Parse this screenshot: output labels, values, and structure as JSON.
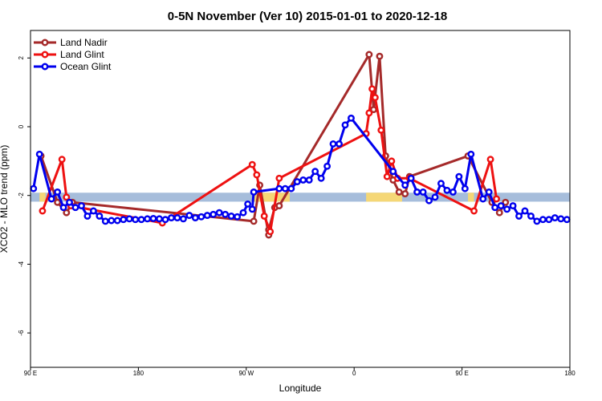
{
  "chart_data": {
    "type": "line",
    "title": "0-5N November (Ver 10)   2015-01-01 to 2020-12-18",
    "xlabel": "Longitude",
    "ylabel": "XCO2 - MLO trend (ppm)",
    "xlim": [
      90,
      450
    ],
    "ylim": [
      -7.0,
      2.8
    ],
    "x_ticks": [
      {
        "value": 90,
        "label": "90 E"
      },
      {
        "value": 162,
        "label": "180"
      },
      {
        "value": 234,
        "label": "90 W"
      },
      {
        "value": 306,
        "label": "0"
      },
      {
        "value": 378,
        "label": "90 E"
      },
      {
        "value": 450,
        "label": "180"
      }
    ],
    "y_ticks": [
      {
        "value": 2,
        "label": "2"
      },
      {
        "value": 0,
        "label": "0"
      },
      {
        "value": -2,
        "label": "-2"
      },
      {
        "value": -4,
        "label": "-4"
      },
      {
        "value": -6,
        "label": "-6"
      }
    ],
    "band": {
      "y_center": -2.05,
      "y_half_height": 0.13,
      "color": "#a6bddb",
      "highlight_color": "#f5d776",
      "highlight_ranges": [
        [
          96,
          100
        ],
        [
          239,
          263
        ],
        [
          314,
          338
        ],
        [
          382,
          386
        ]
      ]
    },
    "legend_position": "top-left",
    "series": [
      {
        "name": "Land Nadir",
        "color": "#a52a2a",
        "points": [
          [
            97,
            -0.85
          ],
          [
            108,
            -2.2
          ],
          [
            114,
            -2.5
          ],
          [
            118,
            -2.2
          ],
          [
            239,
            -2.75
          ],
          [
            243,
            -1.7
          ],
          [
            249,
            -3.15
          ],
          [
            249,
            -3.0
          ],
          [
            253,
            -2.35
          ],
          [
            256,
            -2.3
          ],
          [
            316,
            2.1
          ],
          [
            319,
            0.5
          ],
          [
            323,
            2.05
          ],
          [
            327,
            -0.85
          ],
          [
            332,
            -1.55
          ],
          [
            336,
            -1.9
          ],
          [
            340,
            -1.95
          ],
          [
            343,
            -1.45
          ],
          [
            382,
            -0.85
          ],
          [
            398,
            -2.2
          ],
          [
            403,
            -2.5
          ],
          [
            407,
            -2.2
          ]
        ]
      },
      {
        "name": "Land Glint",
        "color": "#ee1111",
        "points": [
          [
            98,
            -2.45
          ],
          [
            111,
            -0.95
          ],
          [
            114,
            -2.05
          ],
          [
            117,
            -2.3
          ],
          [
            178,
            -2.8
          ],
          [
            238,
            -1.1
          ],
          [
            241,
            -1.4
          ],
          [
            246,
            -2.6
          ],
          [
            250,
            -3.05
          ],
          [
            256,
            -1.5
          ],
          [
            314,
            -0.2
          ],
          [
            316,
            0.4
          ],
          [
            318,
            1.1
          ],
          [
            320,
            0.85
          ],
          [
            324,
            -0.1
          ],
          [
            328,
            -1.45
          ],
          [
            331,
            -1.0
          ],
          [
            335,
            -1.5
          ],
          [
            343,
            -1.5
          ],
          [
            386,
            -2.45
          ],
          [
            397,
            -0.95
          ],
          [
            401,
            -2.1
          ]
        ]
      },
      {
        "name": "Ocean Glint",
        "color": "#0000ee",
        "points": [
          [
            92,
            -1.8
          ],
          [
            96,
            -0.8
          ],
          [
            104,
            -2.1
          ],
          [
            108,
            -1.9
          ],
          [
            112,
            -2.35
          ],
          [
            116,
            -2.2
          ],
          [
            120,
            -2.35
          ],
          [
            124,
            -2.3
          ],
          [
            128,
            -2.6
          ],
          [
            132,
            -2.45
          ],
          [
            136,
            -2.6
          ],
          [
            140,
            -2.75
          ],
          [
            144,
            -2.73
          ],
          [
            148,
            -2.73
          ],
          [
            152,
            -2.7
          ],
          [
            156,
            -2.68
          ],
          [
            160,
            -2.7
          ],
          [
            164,
            -2.7
          ],
          [
            168,
            -2.68
          ],
          [
            172,
            -2.67
          ],
          [
            176,
            -2.68
          ],
          [
            180,
            -2.7
          ],
          [
            184,
            -2.65
          ],
          [
            188,
            -2.65
          ],
          [
            192,
            -2.68
          ],
          [
            196,
            -2.58
          ],
          [
            200,
            -2.65
          ],
          [
            204,
            -2.62
          ],
          [
            208,
            -2.58
          ],
          [
            212,
            -2.55
          ],
          [
            216,
            -2.5
          ],
          [
            220,
            -2.55
          ],
          [
            224,
            -2.6
          ],
          [
            228,
            -2.62
          ],
          [
            232,
            -2.5
          ],
          [
            235,
            -2.25
          ],
          [
            238,
            -2.4
          ],
          [
            239,
            -1.9
          ],
          [
            256,
            -1.8
          ],
          [
            260,
            -1.8
          ],
          [
            264,
            -1.8
          ],
          [
            268,
            -1.6
          ],
          [
            272,
            -1.55
          ],
          [
            276,
            -1.55
          ],
          [
            280,
            -1.3
          ],
          [
            284,
            -1.5
          ],
          [
            288,
            -1.15
          ],
          [
            292,
            -0.5
          ],
          [
            296,
            -0.5
          ],
          [
            300,
            0.05
          ],
          [
            304,
            0.25
          ],
          [
            332,
            -1.3
          ],
          [
            340,
            -1.7
          ],
          [
            344,
            -1.5
          ],
          [
            348,
            -1.9
          ],
          [
            352,
            -1.9
          ],
          [
            356,
            -2.15
          ],
          [
            360,
            -2.05
          ],
          [
            364,
            -1.65
          ],
          [
            368,
            -1.85
          ],
          [
            372,
            -1.9
          ],
          [
            376,
            -1.45
          ],
          [
            380,
            -1.8
          ],
          [
            384,
            -0.8
          ],
          [
            392,
            -2.1
          ],
          [
            396,
            -1.9
          ],
          [
            400,
            -2.35
          ],
          [
            404,
            -2.3
          ],
          [
            408,
            -2.4
          ],
          [
            412,
            -2.3
          ],
          [
            416,
            -2.6
          ],
          [
            420,
            -2.45
          ],
          [
            424,
            -2.6
          ],
          [
            428,
            -2.75
          ],
          [
            432,
            -2.7
          ],
          [
            436,
            -2.7
          ],
          [
            440,
            -2.65
          ],
          [
            444,
            -2.68
          ],
          [
            448,
            -2.7
          ]
        ]
      }
    ]
  }
}
